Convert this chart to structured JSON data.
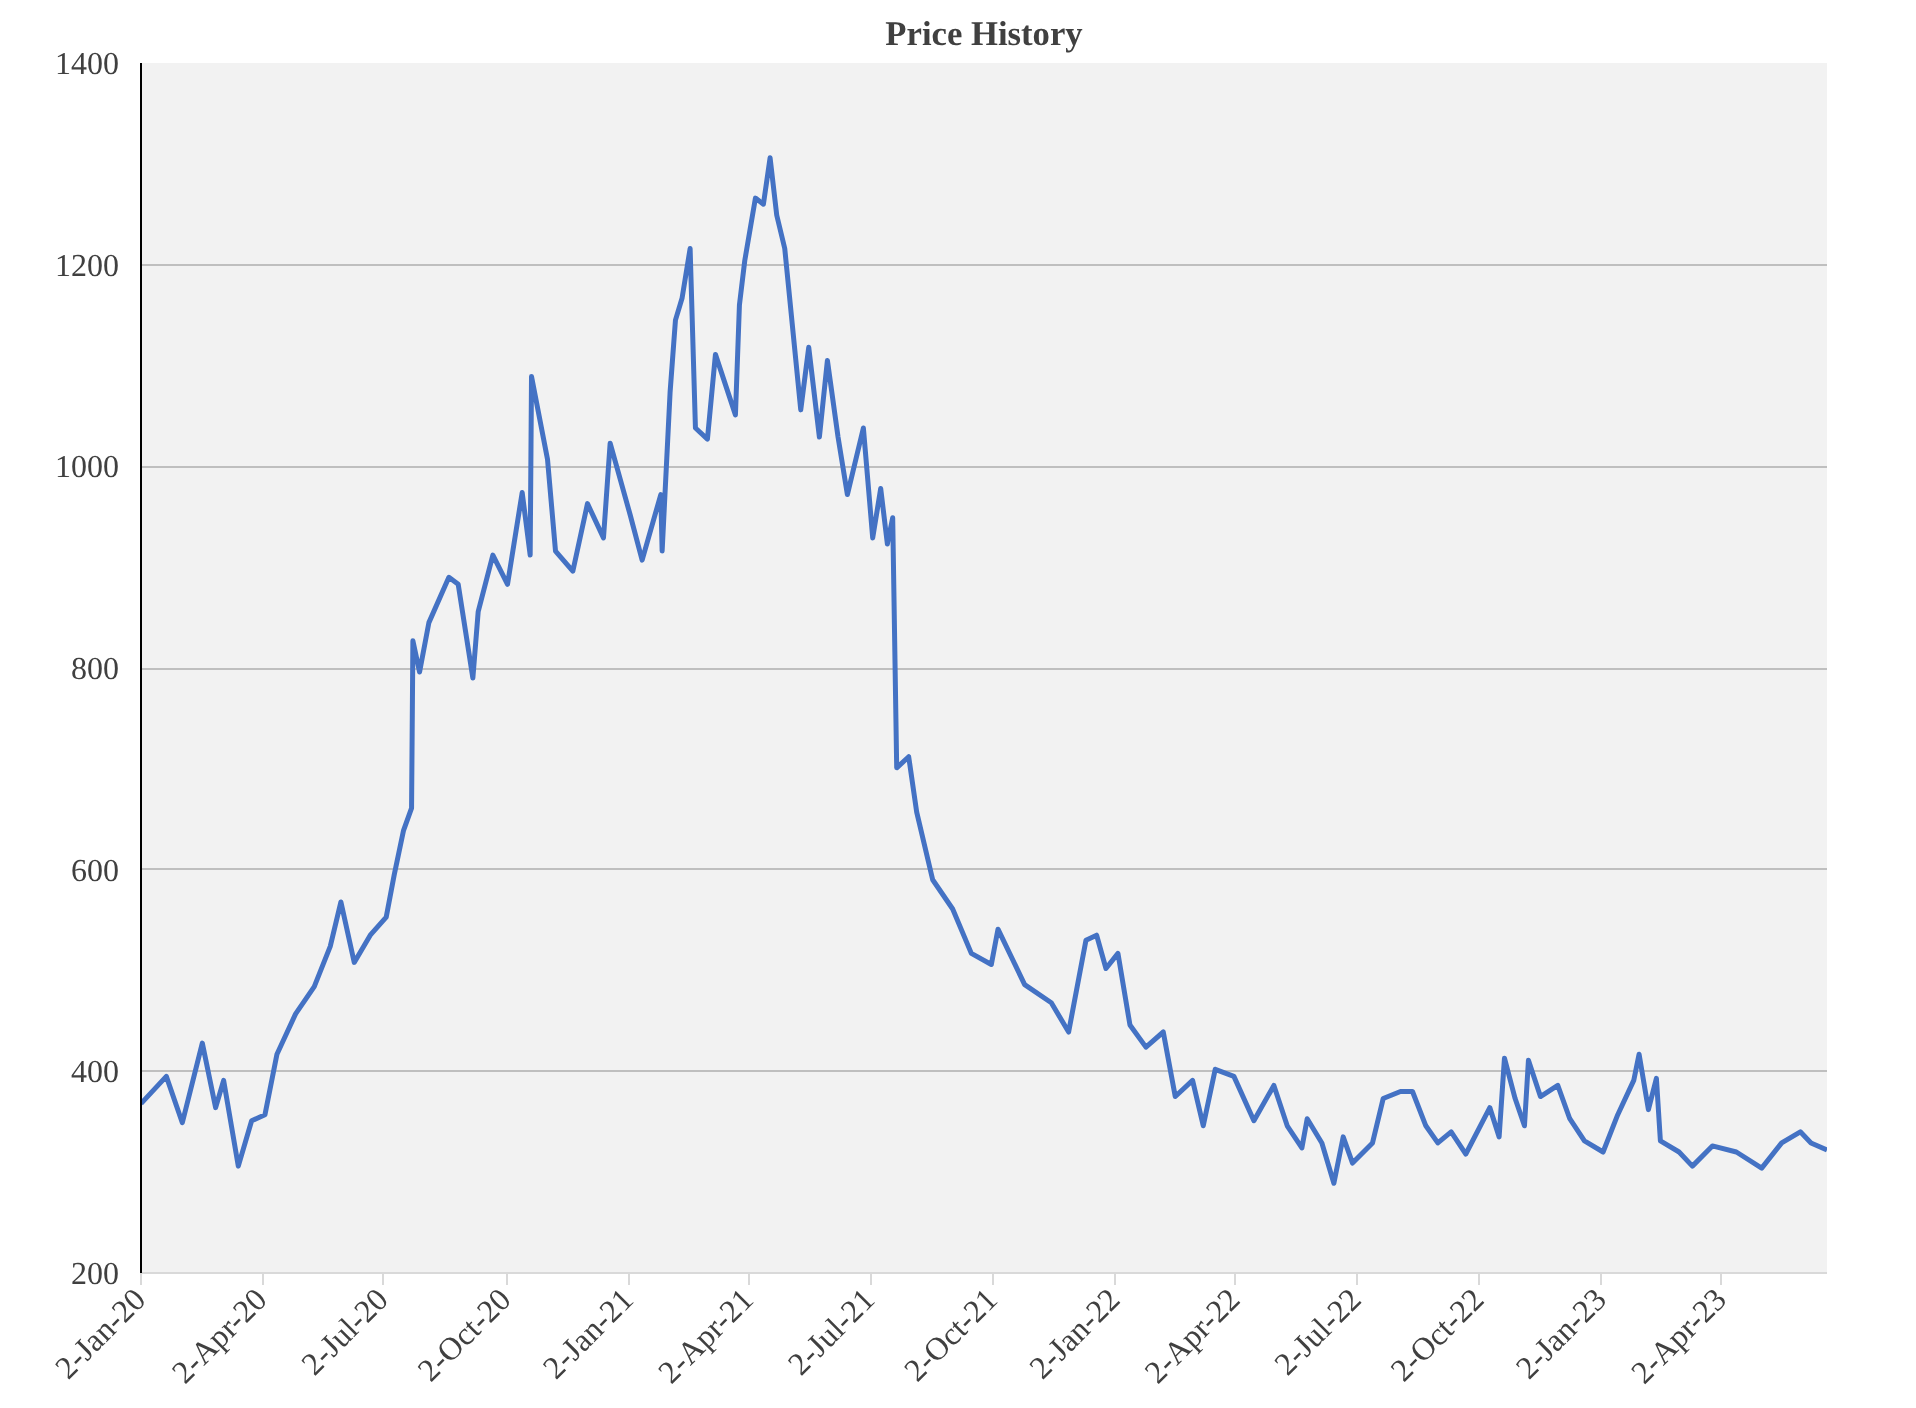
{
  "chart_data": {
    "type": "line",
    "title": "Price History",
    "x": [
      "2020-01-02",
      "2020-01-21",
      "2020-02-02",
      "2020-02-17",
      "2020-02-27",
      "2020-03-04",
      "2020-03-15",
      "2020-03-25",
      "2020-04-04",
      "2020-04-13",
      "2020-04-27",
      "2020-05-11",
      "2020-05-23",
      "2020-05-31",
      "2020-06-10",
      "2020-06-22",
      "2020-07-04",
      "2020-07-10",
      "2020-07-17",
      "2020-07-23",
      "2020-07-24",
      "2020-07-29",
      "2020-08-05",
      "2020-08-20",
      "2020-08-27",
      "2020-09-07",
      "2020-09-11",
      "2020-09-22",
      "2020-10-03",
      "2020-10-14",
      "2020-10-20",
      "2020-10-21",
      "2020-11-02",
      "2020-11-08",
      "2020-11-21",
      "2020-12-02",
      "2020-12-14",
      "2020-12-19",
      "2021-01-03",
      "2021-01-12",
      "2021-01-26",
      "2021-01-27",
      "2021-02-02",
      "2021-02-06",
      "2021-02-11",
      "2021-02-17",
      "2021-02-21",
      "2021-03-02",
      "2021-03-08",
      "2021-03-23",
      "2021-03-26",
      "2021-03-30",
      "2021-04-07",
      "2021-04-13",
      "2021-04-18",
      "2021-04-23",
      "2021-04-29",
      "2021-05-11",
      "2021-05-17",
      "2021-05-25",
      "2021-05-31",
      "2021-06-08",
      "2021-06-15",
      "2021-06-27",
      "2021-07-04",
      "2021-07-10",
      "2021-07-15",
      "2021-07-19",
      "2021-07-22",
      "2021-07-31",
      "2021-08-06",
      "2021-08-18",
      "2021-09-02",
      "2021-09-16",
      "2021-10-01",
      "2021-10-06",
      "2021-10-26",
      "2021-11-15",
      "2021-11-28",
      "2021-12-11",
      "2021-12-19",
      "2021-12-26",
      "2022-01-04",
      "2022-01-13",
      "2022-01-25",
      "2022-02-07",
      "2022-02-16",
      "2022-03-01",
      "2022-03-09",
      "2022-03-18",
      "2022-04-01",
      "2022-04-16",
      "2022-05-01",
      "2022-05-11",
      "2022-05-22",
      "2022-05-26",
      "2022-06-06",
      "2022-06-15",
      "2022-06-22",
      "2022-06-29",
      "2022-07-14",
      "2022-07-22",
      "2022-08-04",
      "2022-08-13",
      "2022-08-23",
      "2022-09-01",
      "2022-09-11",
      "2022-09-22",
      "2022-10-10",
      "2022-10-17",
      "2022-10-21",
      "2022-10-29",
      "2022-11-05",
      "2022-11-08",
      "2022-11-17",
      "2022-11-30",
      "2022-12-09",
      "2022-12-20",
      "2023-01-03",
      "2023-01-14",
      "2023-01-26",
      "2023-01-30",
      "2023-02-06",
      "2023-02-12",
      "2023-02-15",
      "2023-03-01",
      "2023-03-11",
      "2023-03-26",
      "2023-04-13",
      "2023-05-02",
      "2023-05-17",
      "2023-05-31",
      "2023-06-08",
      "2023-06-20"
    ],
    "series": [
      {
        "color": "#4472c4",
        "values": [
          368,
          395,
          349,
          428,
          364,
          391,
          306,
          351,
          357,
          417,
          457,
          484,
          524,
          568,
          508,
          535,
          553,
          595,
          639,
          661,
          827,
          796,
          845,
          890,
          883,
          790,
          856,
          912,
          883,
          974,
          912,
          1089,
          1007,
          916,
          896,
          963,
          929,
          1023,
          952,
          907,
          972,
          916,
          1074,
          1145,
          1167,
          1216,
          1038,
          1027,
          1111,
          1051,
          1160,
          1204,
          1266,
          1260,
          1306,
          1249,
          1216,
          1056,
          1118,
          1029,
          1105,
          1029,
          972,
          1038,
          929,
          978,
          923,
          949,
          701,
          712,
          657,
          590,
          561,
          517,
          506,
          541,
          486,
          468,
          439,
          530,
          535,
          502,
          517,
          446,
          424,
          439,
          375,
          391,
          346,
          402,
          395,
          351,
          386,
          346,
          324,
          353,
          329,
          289,
          335,
          309,
          329,
          373,
          380,
          380,
          346,
          329,
          340,
          318,
          364,
          335,
          413,
          373,
          346,
          411,
          375,
          386,
          353,
          331,
          320,
          357,
          391,
          417,
          362,
          393,
          331,
          320,
          306,
          326,
          320,
          304,
          329,
          340,
          329,
          322
        ]
      }
    ],
    "xlim": [
      "2020-01-02",
      "2023-06-20"
    ],
    "xticks": [
      {
        "value": "2020-01-02",
        "label": "2-Jan-20"
      },
      {
        "value": "2020-04-02",
        "label": "2-Apr-20"
      },
      {
        "value": "2020-07-02",
        "label": "2-Jul-20"
      },
      {
        "value": "2020-10-02",
        "label": "2-Oct-20"
      },
      {
        "value": "2021-01-02",
        "label": "2-Jan-21"
      },
      {
        "value": "2021-04-02",
        "label": "2-Apr-21"
      },
      {
        "value": "2021-07-02",
        "label": "2-Jul-21"
      },
      {
        "value": "2021-10-02",
        "label": "2-Oct-21"
      },
      {
        "value": "2022-01-02",
        "label": "2-Jan-22"
      },
      {
        "value": "2022-04-02",
        "label": "2-Apr-22"
      },
      {
        "value": "2022-07-02",
        "label": "2-Jul-22"
      },
      {
        "value": "2022-10-02",
        "label": "2-Oct-22"
      },
      {
        "value": "2023-01-02",
        "label": "2-Jan-23"
      },
      {
        "value": "2023-04-02",
        "label": "2-Apr-23"
      }
    ],
    "ylim": [
      200,
      1400
    ],
    "yticks": [
      200,
      400,
      600,
      800,
      1000,
      1200,
      1400
    ],
    "grid": "y",
    "marker": "none",
    "line_style": "solid"
  }
}
